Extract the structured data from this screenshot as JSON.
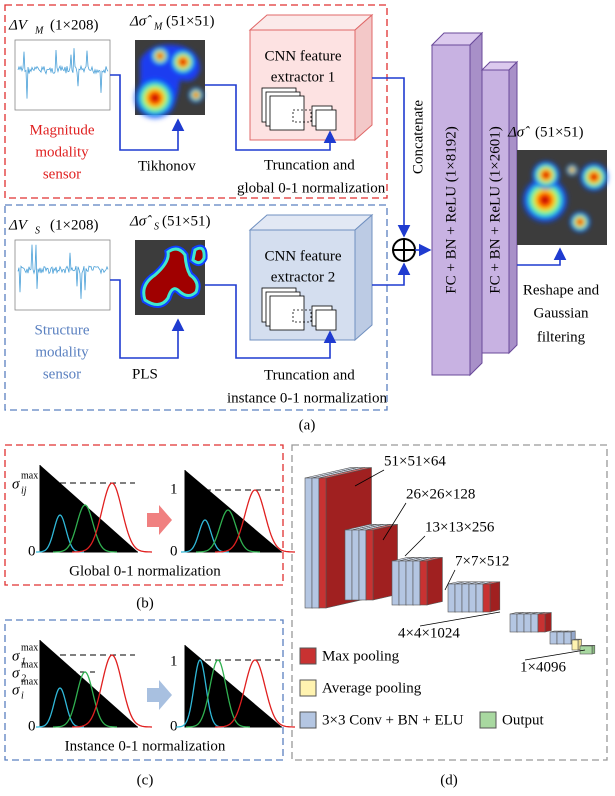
{
  "panel_a": {
    "magnitude": {
      "input_symbol": "ΔV",
      "input_subscript": "M",
      "input_size": "(1×208)",
      "image_symbol": "Δσ̂",
      "image_subscript": "M",
      "image_size": "(51×51)",
      "sensor": [
        "Magnitude",
        "modality",
        "sensor"
      ],
      "extractor": [
        "CNN feature",
        "extractor 1"
      ],
      "reconstruction": "Tikhonov",
      "normalization": [
        "Truncation and",
        "global 0-1 normalization"
      ]
    },
    "structure": {
      "input_symbol": "ΔV",
      "input_subscript": "S",
      "input_size": "(1×208)",
      "image_symbol": "Δσ̂",
      "image_subscript": "S",
      "image_size": "(51×51)",
      "sensor": [
        "Structure",
        "modality",
        "sensor"
      ],
      "extractor": [
        "CNN feature",
        "extractor 2"
      ],
      "reconstruction": "PLS",
      "normalization": [
        "Truncation and",
        "instance 0-1 normalization"
      ]
    },
    "concatenate": "Concatenate",
    "fc_layers": [
      "FC + BN + ReLU (1×8192)",
      "FC + BN + ReLU (1×2601)"
    ],
    "output": {
      "symbol": "Δσ̂",
      "size": "(51×51)",
      "postprocess": [
        "Reshape and",
        "Gaussian",
        "filtering"
      ]
    },
    "caption": "(a)"
  },
  "panel_b": {
    "max_label": {
      "symbol": "σ",
      "subscript": "ij",
      "superscript": "max"
    },
    "axis_labels": [
      "0",
      "1",
      "0"
    ],
    "title": "Global 0-1 normalization",
    "caption": "(b)"
  },
  "panel_c": {
    "max_labels": [
      {
        "symbol": "σ",
        "subscript": "1",
        "superscript": "max"
      },
      {
        "symbol": "σ",
        "subscript": "2",
        "superscript": "max"
      },
      {
        "symbol": "σ",
        "subscript": "i",
        "superscript": "max"
      }
    ],
    "axis_labels": [
      "0",
      "1",
      "0"
    ],
    "title": "Instance 0-1 normalization",
    "caption": "(c)"
  },
  "panel_d": {
    "layer_sizes": [
      "51×51×64",
      "26×26×128",
      "13×13×256",
      "7×7×512",
      "4×4×1024",
      "1×4096"
    ],
    "legend": [
      "Max pooling",
      "Average pooling",
      "3×3 Conv + BN + ELU",
      "Output"
    ],
    "caption": "(d)"
  }
}
